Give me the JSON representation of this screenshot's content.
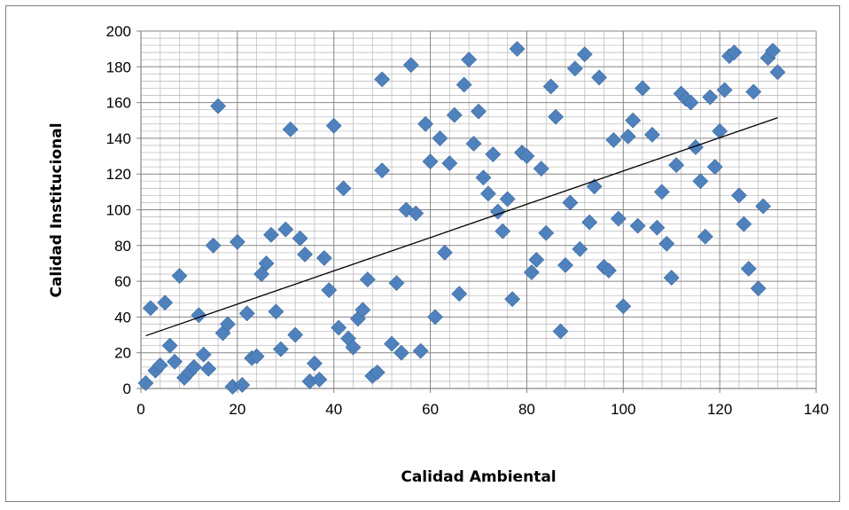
{
  "chart_data": {
    "type": "scatter",
    "title": "",
    "xlabel": "Calidad Ambiental",
    "ylabel": "Calidad Institucional",
    "xlim": [
      0,
      140
    ],
    "ylim": [
      0,
      200
    ],
    "x_ticks": [
      0,
      20,
      40,
      60,
      80,
      100,
      120,
      140
    ],
    "y_ticks": [
      0,
      20,
      40,
      60,
      80,
      100,
      120,
      140,
      160,
      180,
      200
    ],
    "x_tick_labels": [
      "0",
      "20",
      "40",
      "60",
      "80",
      "100",
      "120",
      "140"
    ],
    "y_tick_labels": [
      "0",
      "20",
      "40",
      "60",
      "80",
      "100",
      "120",
      "140",
      "160",
      "180",
      "200"
    ],
    "grid": true,
    "legend": "none",
    "marker": "diamond",
    "marker_color": "#4f81bd",
    "trendline": {
      "type": "linear",
      "x": [
        1,
        132
      ],
      "y": [
        29.5,
        151.5
      ],
      "color": "#000000"
    },
    "series": [
      {
        "points": [
          [
            1,
            3
          ],
          [
            2,
            45
          ],
          [
            3,
            10
          ],
          [
            4,
            13
          ],
          [
            5,
            48
          ],
          [
            6,
            24
          ],
          [
            7,
            15
          ],
          [
            8,
            63
          ],
          [
            9,
            6
          ],
          [
            10,
            9
          ],
          [
            11,
            12
          ],
          [
            12,
            41
          ],
          [
            13,
            19
          ],
          [
            14,
            11
          ],
          [
            15,
            80
          ],
          [
            16,
            158
          ],
          [
            17,
            31
          ],
          [
            18,
            36
          ],
          [
            19,
            1
          ],
          [
            20,
            82
          ],
          [
            21,
            2
          ],
          [
            22,
            42
          ],
          [
            23,
            17
          ],
          [
            24,
            18
          ],
          [
            25,
            64
          ],
          [
            26,
            70
          ],
          [
            27,
            86
          ],
          [
            28,
            43
          ],
          [
            29,
            22
          ],
          [
            30,
            89
          ],
          [
            31,
            145
          ],
          [
            32,
            30
          ],
          [
            33,
            84
          ],
          [
            34,
            75
          ],
          [
            35,
            4
          ],
          [
            36,
            14
          ],
          [
            37,
            5
          ],
          [
            38,
            73
          ],
          [
            39,
            55
          ],
          [
            40,
            147
          ],
          [
            41,
            34
          ],
          [
            42,
            112
          ],
          [
            43,
            28
          ],
          [
            44,
            23
          ],
          [
            45,
            39
          ],
          [
            46,
            44
          ],
          [
            47,
            61
          ],
          [
            48,
            7
          ],
          [
            49,
            9
          ],
          [
            50,
            173
          ],
          [
            50,
            122
          ],
          [
            52,
            25
          ],
          [
            53,
            59
          ],
          [
            54,
            20
          ],
          [
            55,
            100
          ],
          [
            56,
            181
          ],
          [
            57,
            98
          ],
          [
            58,
            21
          ],
          [
            59,
            148
          ],
          [
            60,
            127
          ],
          [
            61,
            40
          ],
          [
            62,
            140
          ],
          [
            63,
            76
          ],
          [
            64,
            126
          ],
          [
            65,
            153
          ],
          [
            66,
            53
          ],
          [
            67,
            170
          ],
          [
            68,
            184
          ],
          [
            69,
            137
          ],
          [
            70,
            155
          ],
          [
            71,
            118
          ],
          [
            72,
            109
          ],
          [
            73,
            131
          ],
          [
            74,
            99
          ],
          [
            75,
            88
          ],
          [
            76,
            106
          ],
          [
            77,
            50
          ],
          [
            78,
            190
          ],
          [
            79,
            132
          ],
          [
            80,
            130
          ],
          [
            81,
            65
          ],
          [
            82,
            72
          ],
          [
            83,
            123
          ],
          [
            84,
            87
          ],
          [
            85,
            169
          ],
          [
            86,
            152
          ],
          [
            87,
            32
          ],
          [
            88,
            69
          ],
          [
            89,
            104
          ],
          [
            90,
            179
          ],
          [
            91,
            78
          ],
          [
            92,
            187
          ],
          [
            93,
            93
          ],
          [
            94,
            113
          ],
          [
            95,
            174
          ],
          [
            96,
            68
          ],
          [
            97,
            66
          ],
          [
            98,
            139
          ],
          [
            99,
            95
          ],
          [
            100,
            46
          ],
          [
            101,
            141
          ],
          [
            102,
            150
          ],
          [
            103,
            91
          ],
          [
            104,
            168
          ],
          [
            106,
            142
          ],
          [
            107,
            90
          ],
          [
            108,
            110
          ],
          [
            109,
            81
          ],
          [
            110,
            62
          ],
          [
            111,
            125
          ],
          [
            112,
            165
          ],
          [
            113,
            162
          ],
          [
            114,
            160
          ],
          [
            115,
            135
          ],
          [
            116,
            116
          ],
          [
            117,
            85
          ],
          [
            118,
            163
          ],
          [
            119,
            124
          ],
          [
            120,
            144
          ],
          [
            121,
            167
          ],
          [
            122,
            186
          ],
          [
            123,
            188
          ],
          [
            124,
            108
          ],
          [
            125,
            92
          ],
          [
            126,
            67
          ],
          [
            127,
            166
          ],
          [
            128,
            56
          ],
          [
            129,
            102
          ],
          [
            130,
            185
          ],
          [
            131,
            189
          ],
          [
            132,
            177
          ]
        ]
      }
    ]
  }
}
